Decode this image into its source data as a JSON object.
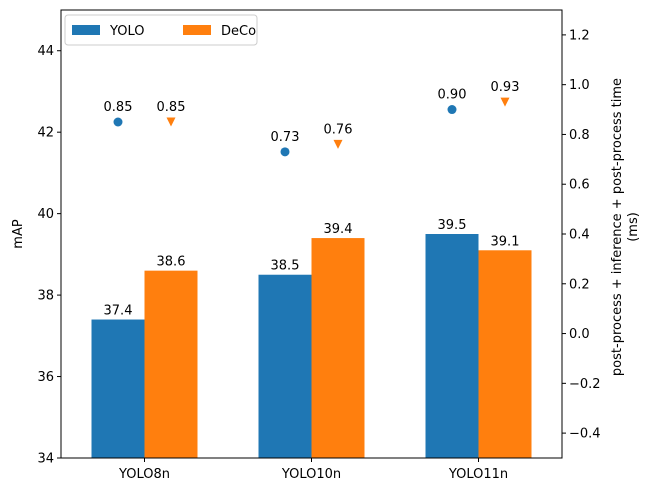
{
  "chart_data": {
    "type": "bar",
    "categories": [
      "YOLO8n",
      "YOLO10n",
      "YOLO11n"
    ],
    "series": [
      {
        "name": "YOLO",
        "values": [
          37.4,
          38.5,
          39.5
        ],
        "color": "#1f77b4"
      },
      {
        "name": "DeCo",
        "values": [
          38.6,
          39.4,
          39.1
        ],
        "color": "#ff7f0e"
      }
    ],
    "ylabel": "mAP",
    "ylim": [
      34,
      45
    ],
    "yticks": [
      34,
      36,
      38,
      40,
      42,
      44
    ],
    "secondary_axis": {
      "type": "scatter",
      "ylabel_lines": [
        "post-process + inference + post-process time",
        "(ms)"
      ],
      "ylim": [
        -0.5,
        1.3
      ],
      "yticks": [
        -0.4,
        -0.2,
        0.0,
        0.2,
        0.4,
        0.6,
        0.8,
        1.0,
        1.2
      ],
      "series": [
        {
          "name": "YOLO",
          "values": [
            0.85,
            0.73,
            0.9
          ],
          "labels": [
            "0.85",
            "0.73",
            "0.90"
          ],
          "marker": "circle",
          "color": "#1f77b4"
        },
        {
          "name": "DeCo",
          "values": [
            0.85,
            0.76,
            0.93
          ],
          "labels": [
            "0.85",
            "0.76",
            "0.93"
          ],
          "marker": "triangle-down",
          "color": "#ff7f0e"
        }
      ]
    },
    "legend": {
      "placement": "top-left",
      "entries": [
        "YOLO",
        "DeCo"
      ]
    },
    "grid": false
  }
}
